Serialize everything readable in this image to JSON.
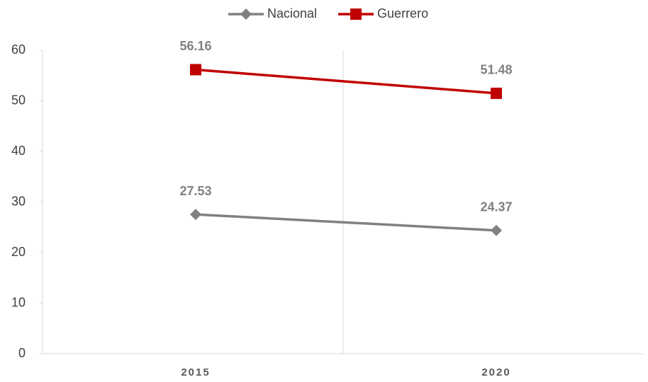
{
  "chart_data": {
    "type": "line",
    "categories": [
      "2015",
      "2020"
    ],
    "series": [
      {
        "name": "Nacional",
        "color": "#808080",
        "marker": "diamond",
        "values": [
          27.53,
          24.37
        ]
      },
      {
        "name": "Guerrero",
        "color": "#c00000",
        "marker": "square",
        "values": [
          56.16,
          51.48
        ]
      }
    ],
    "ylim": [
      0,
      60
    ],
    "yticks": [
      0,
      10,
      20,
      30,
      40,
      50,
      60
    ],
    "legend": "top"
  }
}
